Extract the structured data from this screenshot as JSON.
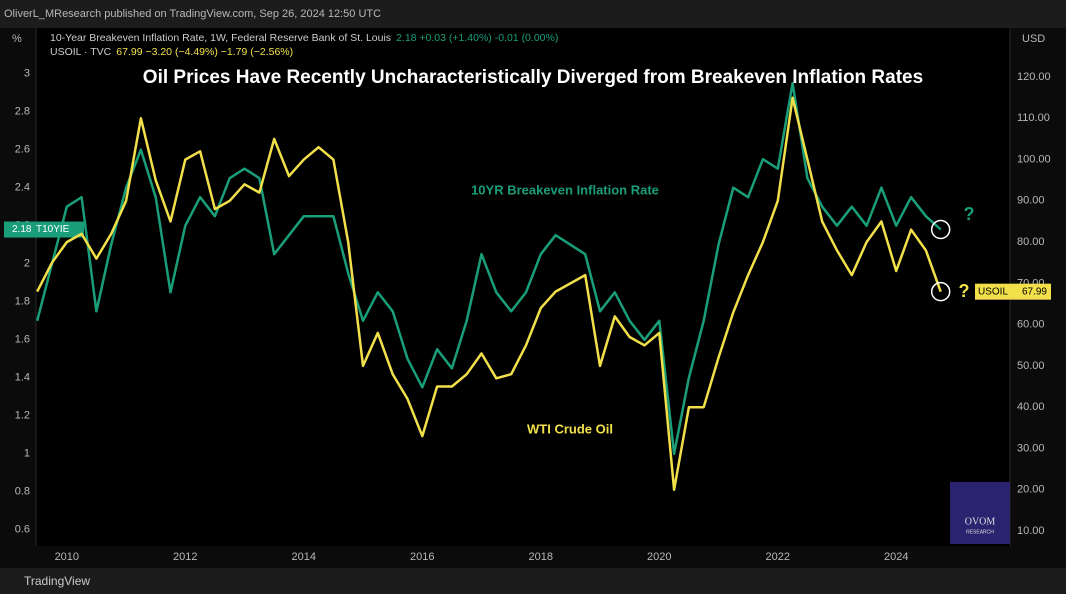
{
  "header": {
    "publisher": "OliverL_MResearch published on TradingView.com, Sep 26, 2024 12:50 UTC",
    "footer": "TradingView"
  },
  "chart_data": {
    "type": "line",
    "title": "Oil Prices Have Recently Uncharacteristically Diverged from Breakeven Inflation Rates",
    "y_unit": "%",
    "y2_unit": "USD",
    "annotations": [
      "10YR Breakeven Inflation Rate",
      "WTI Crude Oil",
      "?",
      "?"
    ],
    "watermark": [
      "OVOM",
      "RESEARCH"
    ],
    "x": [
      2009.5,
      2009.75,
      2010,
      2010.25,
      2010.5,
      2010.75,
      2011,
      2011.25,
      2011.5,
      2011.75,
      2012,
      2012.25,
      2012.5,
      2012.75,
      2013,
      2013.25,
      2013.5,
      2013.75,
      2014,
      2014.25,
      2014.5,
      2014.75,
      2015,
      2015.25,
      2015.5,
      2015.75,
      2016,
      2016.25,
      2016.5,
      2016.75,
      2017,
      2017.25,
      2017.5,
      2017.75,
      2018,
      2018.25,
      2018.5,
      2018.75,
      2019,
      2019.25,
      2019.5,
      2019.75,
      2020,
      2020.25,
      2020.5,
      2020.75,
      2021,
      2021.25,
      2021.5,
      2021.75,
      2022,
      2022.25,
      2022.5,
      2022.75,
      2023,
      2023.25,
      2023.5,
      2023.75,
      2024,
      2024.25,
      2024.5,
      2024.75
    ],
    "series": [
      {
        "name": "10-Year Breakeven Inflation Rate, 1W, Federal Reserve Bank of St. Louis",
        "stats": "2.18 +0.03 (+1.40%) -0.01 (0.00%)",
        "ticker": "T10YIE",
        "color": "#1a9e7a",
        "axis": "y",
        "values": [
          1.7,
          2.0,
          2.3,
          2.35,
          1.75,
          2.1,
          2.4,
          2.6,
          2.35,
          1.85,
          2.2,
          2.35,
          2.25,
          2.45,
          2.5,
          2.45,
          2.05,
          2.15,
          2.25,
          2.25,
          2.25,
          1.95,
          1.7,
          1.85,
          1.75,
          1.5,
          1.35,
          1.55,
          1.45,
          1.7,
          2.05,
          1.85,
          1.75,
          1.85,
          2.05,
          2.15,
          2.1,
          2.05,
          1.75,
          1.85,
          1.7,
          1.6,
          1.7,
          1.0,
          1.4,
          1.7,
          2.1,
          2.4,
          2.35,
          2.55,
          2.5,
          2.95,
          2.45,
          2.3,
          2.2,
          2.3,
          2.2,
          2.4,
          2.2,
          2.35,
          2.25,
          2.18
        ]
      },
      {
        "name": "USOIL · TVC",
        "stats": "67.99 −3.20 (−4.49%) −1.79 (−2.56%)",
        "ticker": "USOIL",
        "color": "#f2e04b",
        "axis": "y2",
        "values": [
          68,
          75,
          80,
          82,
          76,
          82,
          90,
          110,
          95,
          85,
          100,
          102,
          88,
          90,
          94,
          92,
          105,
          96,
          100,
          103,
          100,
          80,
          50,
          58,
          48,
          42,
          33,
          45,
          45,
          48,
          53,
          47,
          48,
          55,
          64,
          68,
          70,
          72,
          50,
          62,
          57,
          55,
          58,
          20,
          40,
          40,
          52,
          63,
          72,
          80,
          90,
          115,
          100,
          85,
          78,
          72,
          80,
          85,
          73,
          83,
          78,
          67.99
        ]
      }
    ],
    "xlim": [
      2009.48,
      2025.92
    ],
    "xticks": [
      2010,
      2012,
      2014,
      2016,
      2018,
      2020,
      2022,
      2024
    ],
    "ylim": [
      0.52,
      3.23
    ],
    "yticks": [
      0.6,
      0.8,
      1,
      1.2,
      1.4,
      1.6,
      1.8,
      2,
      2.2,
      2.4,
      2.6,
      2.8,
      3
    ],
    "y2lim": [
      6.6,
      131.4
    ],
    "y2ticks": [
      {
        "value": 10,
        "label": "10.00"
      },
      {
        "value": 20,
        "label": "20.00"
      },
      {
        "value": 30,
        "label": "30.00"
      },
      {
        "value": 40,
        "label": "40.00"
      },
      {
        "value": 50,
        "label": "50.00"
      },
      {
        "value": 60,
        "label": "60.00"
      },
      {
        "value": 70,
        "label": "70.00"
      },
      {
        "value": 80,
        "label": "80.00"
      },
      {
        "value": 90,
        "label": "90.00"
      },
      {
        "value": 100,
        "label": "100.00"
      },
      {
        "value": 110,
        "label": "110.00"
      },
      {
        "value": 120,
        "label": "120.00"
      }
    ],
    "grid": false
  }
}
